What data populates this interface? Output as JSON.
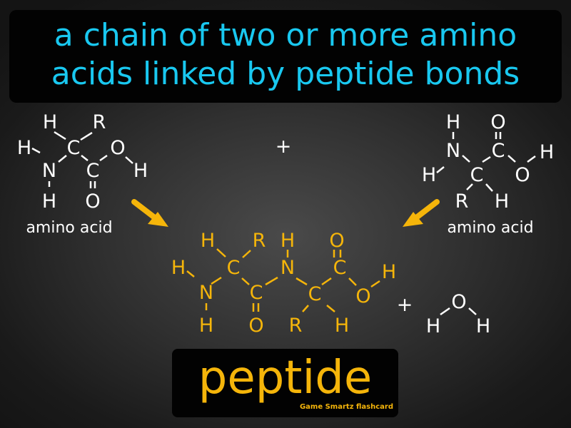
{
  "definition": {
    "line1": "a chain of two or more amino",
    "line2": "acids linked by peptide bonds"
  },
  "left_molecule": {
    "caption": "amino acid",
    "atoms": {
      "h_top": "H",
      "r": "R",
      "h_left": "H",
      "c1": "C",
      "o": "O",
      "n": "N",
      "c2": "C",
      "h_right": "H",
      "h_bottom": "H",
      "o_bottom": "O"
    }
  },
  "plus_top": "+",
  "right_molecule": {
    "caption": "amino acid",
    "atoms": {
      "h_top": "H",
      "o_top": "O",
      "n": "N",
      "c1": "C",
      "h_right": "H",
      "h_left": "H",
      "c2": "C",
      "o": "O",
      "r": "R",
      "h_bottom": "H"
    }
  },
  "product": {
    "atoms": {
      "h1": "H",
      "r": "R",
      "h2": "H",
      "o_top": "O",
      "h3": "H",
      "c1": "C",
      "n2": "N",
      "c3": "C",
      "h4": "H",
      "n1": "N",
      "c2": "C",
      "c4": "C",
      "o_mid": "O",
      "h5": "H",
      "o_bottom": "O",
      "r2": "R",
      "h6": "H"
    }
  },
  "plus_bottom": "+",
  "water": {
    "o": "O",
    "h_left": "H",
    "h_right": "H"
  },
  "term": "peptide",
  "credit": "Game Smartz flashcard",
  "colors": {
    "definition": "#19c8f0",
    "product": "#f5b50a",
    "reactants": "#ffffff",
    "background": "#2e2e2e"
  }
}
